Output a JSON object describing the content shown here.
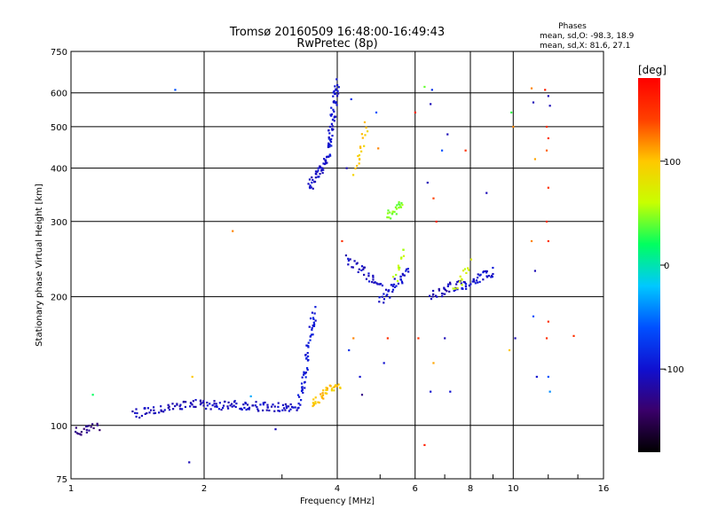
{
  "chart_data": {
    "type": "scatter",
    "title": "Tromsø 20160509 16:48:00-16:49:43",
    "subtitle": "RwPretec (8p)",
    "xlabel": "Frequency [MHz]",
    "ylabel": "Stationary phase Virtual Height [km]",
    "x_scale": "log",
    "y_scale": "log",
    "xlim": [
      1,
      16
    ],
    "ylim": [
      75,
      750
    ],
    "x_ticks": [
      1,
      2,
      4,
      6,
      8,
      10,
      16
    ],
    "y_ticks": [
      75,
      100,
      200,
      300,
      400,
      500,
      600,
      750
    ],
    "grid": true,
    "colorbar": {
      "label": "[deg]",
      "range": [
        -180,
        180
      ],
      "ticks": [
        100,
        0,
        -100
      ],
      "colors": [
        "#000000",
        "#3a006a",
        "#1010d0",
        "#0050ff",
        "#00c8ff",
        "#00ff60",
        "#c8ff00",
        "#ffc800",
        "#ff4000",
        "#ff0000"
      ]
    },
    "stats": {
      "heading": "Phases",
      "line1": "mean, sd,O: -98.3, 18.9",
      "line2": "mean, sd,X:  81.6, 27.1"
    },
    "traces": [
      {
        "x": [
          1.02,
          1.15
        ],
        "y": [
          96,
          100
        ],
        "phase": -130,
        "n": 20
      },
      {
        "x": [
          1.38,
          2.0
        ],
        "y": [
          106,
          114
        ],
        "phase": -110,
        "n": 55
      },
      {
        "x": [
          2.0,
          3.3
        ],
        "y": [
          112,
          110
        ],
        "phase": -105,
        "n": 90
      },
      {
        "x": [
          3.3,
          3.55
        ],
        "y": [
          115,
          185
        ],
        "phase": -95,
        "n": 55
      },
      {
        "x": [
          3.45,
          3.8
        ],
        "y": [
          360,
          420
        ],
        "phase": -105,
        "n": 40
      },
      {
        "x": [
          3.8,
          4.0
        ],
        "y": [
          420,
          640
        ],
        "phase": -100,
        "n": 65
      },
      {
        "x": [
          3.5,
          4.05
        ],
        "y": [
          113,
          125
        ],
        "phase": 100,
        "n": 40
      },
      {
        "x": [
          4.4,
          4.65
        ],
        "y": [
          395,
          500
        ],
        "phase": 95,
        "n": 18
      },
      {
        "x": [
          5.2,
          5.6
        ],
        "y": [
          310,
          330
        ],
        "phase": 45,
        "n": 22
      },
      {
        "x": [
          4.2,
          5.1
        ],
        "y": [
          245,
          210
        ],
        "phase": -105,
        "n": 35
      },
      {
        "x": [
          5.0,
          5.8
        ],
        "y": [
          195,
          230
        ],
        "phase": -100,
        "n": 35
      },
      {
        "x": [
          5.4,
          5.7
        ],
        "y": [
          220,
          255
        ],
        "phase": 60,
        "n": 12
      },
      {
        "x": [
          6.5,
          7.6
        ],
        "y": [
          200,
          215
        ],
        "phase": -110,
        "n": 30
      },
      {
        "x": [
          7.6,
          9.0
        ],
        "y": [
          210,
          230
        ],
        "phase": -100,
        "n": 40
      },
      {
        "x": [
          7.4,
          8.0
        ],
        "y": [
          205,
          240
        ],
        "phase": 65,
        "n": 14
      }
    ],
    "points": [
      {
        "x": 1.12,
        "y": 118,
        "phase": 20
      },
      {
        "x": 1.72,
        "y": 610,
        "phase": -60
      },
      {
        "x": 1.85,
        "y": 82,
        "phase": -110
      },
      {
        "x": 1.88,
        "y": 130,
        "phase": 100
      },
      {
        "x": 2.32,
        "y": 285,
        "phase": 120
      },
      {
        "x": 2.9,
        "y": 98,
        "phase": -110
      },
      {
        "x": 2.55,
        "y": 117,
        "phase": -30
      },
      {
        "x": 4.2,
        "y": 400,
        "phase": -110
      },
      {
        "x": 4.3,
        "y": 580,
        "phase": -80
      },
      {
        "x": 4.1,
        "y": 270,
        "phase": 150
      },
      {
        "x": 4.25,
        "y": 150,
        "phase": -80
      },
      {
        "x": 4.35,
        "y": 160,
        "phase": 120
      },
      {
        "x": 4.5,
        "y": 130,
        "phase": -100
      },
      {
        "x": 4.55,
        "y": 118,
        "phase": -130
      },
      {
        "x": 4.9,
        "y": 540,
        "phase": -60
      },
      {
        "x": 4.95,
        "y": 445,
        "phase": 120
      },
      {
        "x": 5.1,
        "y": 140,
        "phase": -100
      },
      {
        "x": 5.2,
        "y": 160,
        "phase": 150
      },
      {
        "x": 6.0,
        "y": 540,
        "phase": 160
      },
      {
        "x": 6.3,
        "y": 620,
        "phase": 40
      },
      {
        "x": 6.55,
        "y": 610,
        "phase": -80
      },
      {
        "x": 6.5,
        "y": 565,
        "phase": -110
      },
      {
        "x": 6.4,
        "y": 370,
        "phase": -110
      },
      {
        "x": 6.6,
        "y": 340,
        "phase": 140
      },
      {
        "x": 6.7,
        "y": 300,
        "phase": 160
      },
      {
        "x": 6.3,
        "y": 90,
        "phase": 160
      },
      {
        "x": 6.5,
        "y": 120,
        "phase": -100
      },
      {
        "x": 6.1,
        "y": 160,
        "phase": 150
      },
      {
        "x": 6.6,
        "y": 140,
        "phase": 110
      },
      {
        "x": 6.9,
        "y": 440,
        "phase": -60
      },
      {
        "x": 7.1,
        "y": 480,
        "phase": -110
      },
      {
        "x": 7.0,
        "y": 160,
        "phase": -110
      },
      {
        "x": 7.2,
        "y": 120,
        "phase": -100
      },
      {
        "x": 7.8,
        "y": 440,
        "phase": 150
      },
      {
        "x": 8.7,
        "y": 350,
        "phase": -110
      },
      {
        "x": 9.9,
        "y": 540,
        "phase": 30
      },
      {
        "x": 10.0,
        "y": 500,
        "phase": 120
      },
      {
        "x": 9.8,
        "y": 150,
        "phase": 100
      },
      {
        "x": 10.1,
        "y": 160,
        "phase": -110
      },
      {
        "x": 11.0,
        "y": 615,
        "phase": 120
      },
      {
        "x": 11.1,
        "y": 570,
        "phase": -110
      },
      {
        "x": 11.2,
        "y": 420,
        "phase": 110
      },
      {
        "x": 11.0,
        "y": 270,
        "phase": 120
      },
      {
        "x": 11.2,
        "y": 230,
        "phase": -110
      },
      {
        "x": 11.1,
        "y": 180,
        "phase": -60
      },
      {
        "x": 11.3,
        "y": 130,
        "phase": -100
      },
      {
        "x": 11.8,
        "y": 610,
        "phase": 160
      },
      {
        "x": 12.0,
        "y": 590,
        "phase": -110
      },
      {
        "x": 12.1,
        "y": 560,
        "phase": -110
      },
      {
        "x": 11.9,
        "y": 500,
        "phase": 150
      },
      {
        "x": 12.0,
        "y": 470,
        "phase": 150
      },
      {
        "x": 11.9,
        "y": 440,
        "phase": 130
      },
      {
        "x": 12.0,
        "y": 360,
        "phase": 150
      },
      {
        "x": 11.9,
        "y": 300,
        "phase": 150
      },
      {
        "x": 12.0,
        "y": 270,
        "phase": 150
      },
      {
        "x": 12.0,
        "y": 175,
        "phase": 150
      },
      {
        "x": 11.9,
        "y": 160,
        "phase": 150
      },
      {
        "x": 12.0,
        "y": 130,
        "phase": -60
      },
      {
        "x": 12.1,
        "y": 120,
        "phase": -40
      },
      {
        "x": 13.7,
        "y": 162,
        "phase": 150
      }
    ]
  }
}
